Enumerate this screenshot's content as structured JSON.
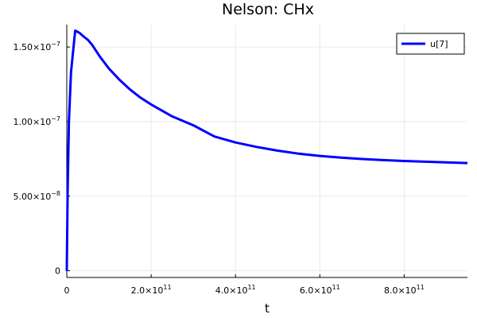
{
  "chart_data": {
    "type": "line",
    "title": "Nelson: CHx",
    "xlabel": "t",
    "ylabel": "",
    "xlim": [
      0,
      950000000000
    ],
    "ylim": [
      -4.5e-09,
      1.65e-07
    ],
    "grid": true,
    "legend_position": "top-right",
    "x_ticks": [
      {
        "mant": "0",
        "exp": ""
      },
      {
        "mant": "2.0×10",
        "exp": "11"
      },
      {
        "mant": "4.0×10",
        "exp": "11"
      },
      {
        "mant": "6.0×10",
        "exp": "11"
      },
      {
        "mant": "8.0×10",
        "exp": "11"
      }
    ],
    "x_tick_values": [
      0,
      200000000000,
      400000000000,
      600000000000,
      800000000000
    ],
    "y_ticks": [
      {
        "mant": "0",
        "exp": ""
      },
      {
        "mant": "5.00×10",
        "exp": "−8"
      },
      {
        "mant": "1.00×10",
        "exp": "−7"
      },
      {
        "mant": "1.50×10",
        "exp": "−7"
      }
    ],
    "y_tick_values": [
      0,
      5e-08,
      1e-07,
      1.5e-07
    ],
    "series": [
      {
        "name": "u[7]",
        "color": "#0000ff",
        "x": [
          0,
          2000000000,
          5000000000,
          10000000000,
          20000000000,
          30000000000,
          40000000000,
          50000000000,
          60000000000,
          80000000000,
          100000000000,
          125000000000,
          150000000000,
          175000000000,
          200000000000,
          250000000000,
          300000000000,
          350000000000,
          400000000000,
          450000000000,
          500000000000,
          550000000000,
          600000000000,
          650000000000,
          700000000000,
          750000000000,
          800000000000,
          850000000000,
          900000000000,
          950000000000
        ],
        "y": [
          0,
          5.4e-08,
          1e-07,
          1.33e-07,
          1.61e-07,
          1.595e-07,
          1.57e-07,
          1.548e-07,
          1.515e-07,
          1.43e-07,
          1.355e-07,
          1.28e-07,
          1.215e-07,
          1.16e-07,
          1.115e-07,
          1.035e-07,
          9.75e-08,
          9e-08,
          8.6e-08,
          8.3e-08,
          8.05e-08,
          7.85e-08,
          7.7e-08,
          7.58e-08,
          7.49e-08,
          7.42e-08,
          7.36e-08,
          7.31e-08,
          7.27e-08,
          7.22e-08
        ]
      }
    ]
  }
}
